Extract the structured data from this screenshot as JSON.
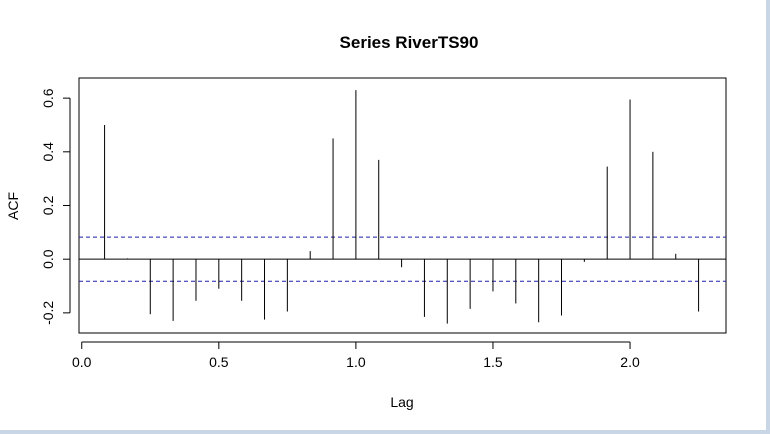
{
  "chart_data": {
    "type": "bar",
    "title": "Series RiverTS90",
    "xlabel": "Lag",
    "ylabel": "ACF",
    "xlim": [
      -0.01,
      2.35
    ],
    "ylim": [
      -0.275,
      0.675
    ],
    "x_ticks": [
      "0.0",
      "0.5",
      "1.0",
      "1.5",
      "2.0"
    ],
    "x_tick_values": [
      0,
      0.5,
      1,
      1.5,
      2
    ],
    "y_ticks": [
      "-0.2",
      "0.0",
      "0.2",
      "0.4",
      "0.6"
    ],
    "y_tick_values": [
      -0.2,
      0,
      0.2,
      0.4,
      0.6
    ],
    "confidence_bound": 0.082,
    "colors": {
      "bars": "#000000",
      "confidence_lines": "#1f1fa8",
      "frame": "#000000"
    },
    "x": [
      0.0833,
      0.1667,
      0.25,
      0.3333,
      0.4167,
      0.5,
      0.5833,
      0.6667,
      0.75,
      0.8333,
      0.9167,
      1.0,
      1.0833,
      1.1667,
      1.25,
      1.3333,
      1.4167,
      1.5,
      1.5833,
      1.6667,
      1.75,
      1.8333,
      1.9167,
      2.0,
      2.0833,
      2.1667,
      2.25
    ],
    "values": [
      0.5,
      0.003,
      -0.205,
      -0.23,
      -0.155,
      -0.11,
      -0.155,
      -0.225,
      -0.195,
      0.03,
      0.45,
      0.63,
      0.37,
      -0.03,
      -0.215,
      -0.24,
      -0.185,
      -0.12,
      -0.165,
      -0.235,
      -0.21,
      -0.01,
      0.345,
      0.595,
      0.4,
      0.02,
      -0.195
    ]
  }
}
